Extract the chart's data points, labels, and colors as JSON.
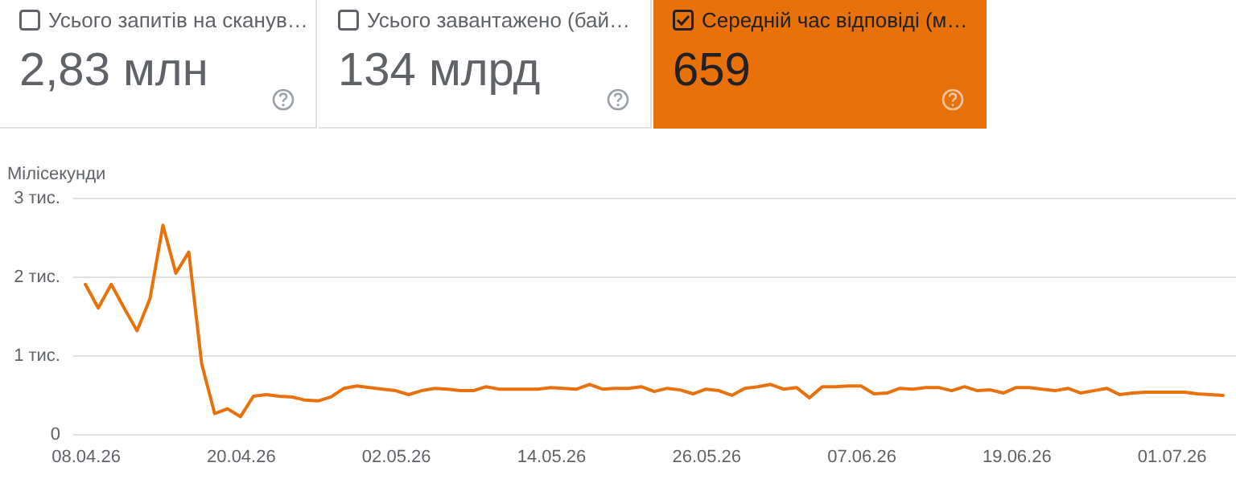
{
  "chart_data": [
    {
      "type": "other",
      "title": "Усього запитів на сканув…",
      "annotations": [
        "2,83 млн"
      ]
    },
    {
      "type": "other",
      "title": "Усього завантажено (бай…",
      "annotations": [
        "134 млрд"
      ]
    },
    {
      "type": "other",
      "title": "Середній час відповіді (м…",
      "annotations": [
        "659"
      ]
    },
    {
      "type": "line",
      "ylabel": "Мілісекунди",
      "x": [
        "--04-08",
        "--04-09",
        "--04-10",
        "--04-11",
        "--04-12",
        "--04-13",
        "--04-14",
        "--04-15",
        "--04-16",
        "--04-17",
        "--04-18",
        "--04-19",
        "--04-20",
        "--04-21",
        "--04-22",
        "--04-23",
        "--04-24",
        "--04-25",
        "--04-26",
        "--04-27",
        "--04-28",
        "--04-29",
        "--04-30",
        "--05-01",
        "--05-02",
        "--05-03",
        "--05-04",
        "--05-05",
        "--05-06",
        "--05-07",
        "--05-08",
        "--05-09",
        "--05-10",
        "--05-11",
        "--05-12",
        "--05-13",
        "--05-14",
        "--05-15",
        "--05-16",
        "--05-17",
        "--05-18",
        "--05-19",
        "--05-20",
        "--05-21",
        "--05-22",
        "--05-23",
        "--05-24",
        "--05-25",
        "--05-26",
        "--05-27",
        "--05-28",
        "--05-29",
        "--05-30",
        "--05-31",
        "--06-01",
        "--06-02",
        "--06-03",
        "--06-04",
        "--06-05",
        "--06-06",
        "--06-07",
        "--06-08",
        "--06-09",
        "--06-10",
        "--06-11",
        "--06-12",
        "--06-13",
        "--06-14",
        "--06-15",
        "--06-16",
        "--06-17",
        "--06-18",
        "--06-19",
        "--06-20",
        "--06-21",
        "--06-22",
        "--06-23",
        "--06-24",
        "--06-25",
        "--06-26",
        "--06-27",
        "--06-28",
        "--06-29",
        "--06-30",
        "--07-01",
        "--07-02",
        "--07-03",
        "--07-04",
        "--07-05"
      ],
      "series": [
        {
          "color": "#e8710a",
          "values": [
            1.9,
            1.6,
            1.9,
            1.6,
            1.31,
            1.72,
            2.65,
            2.04,
            2.31,
            0.89,
            0.26,
            0.32,
            0.22,
            0.48,
            0.5,
            0.48,
            0.47,
            0.43,
            0.42,
            0.47,
            0.58,
            0.61,
            0.59,
            0.57,
            0.55,
            0.5,
            0.55,
            0.58,
            0.57,
            0.55,
            0.55,
            0.6,
            0.57,
            0.57,
            0.57,
            0.57,
            0.59,
            0.58,
            0.57,
            0.63,
            0.57,
            0.58,
            0.58,
            0.6,
            0.54,
            0.58,
            0.56,
            0.51,
            0.57,
            0.55,
            0.49,
            0.58,
            0.6,
            0.63,
            0.57,
            0.59,
            0.46,
            0.6,
            0.6,
            0.61,
            0.61,
            0.51,
            0.52,
            0.58,
            0.57,
            0.59,
            0.59,
            0.55,
            0.6,
            0.55,
            0.56,
            0.52,
            0.59,
            0.59,
            0.57,
            0.55,
            0.58,
            0.52,
            0.55,
            0.58,
            0.5,
            0.52,
            0.53,
            0.53,
            0.53,
            0.53,
            0.51,
            0.5,
            0.49
          ]
        }
      ],
      "xlim": [
        "--04-07",
        "--07-06"
      ],
      "xticks": [
        {
          "value": "--04-08",
          "label": "08.04.26"
        },
        {
          "value": "--04-20",
          "label": "20.04.26"
        },
        {
          "value": "--05-02",
          "label": "02.05.26"
        },
        {
          "value": "--05-14",
          "label": "14.05.26"
        },
        {
          "value": "--05-26",
          "label": "26.05.26"
        },
        {
          "value": "--06-07",
          "label": "07.06.26"
        },
        {
          "value": "--06-19",
          "label": "19.06.26"
        },
        {
          "value": "--07-01",
          "label": "01.07.26"
        }
      ],
      "ylim": [
        0,
        3
      ],
      "yticks": [
        0,
        {
          "value": 1,
          "label": "1 тис."
        },
        {
          "value": 2,
          "label": "2 тис."
        },
        {
          "value": 3,
          "label": "3 тис."
        }
      ],
      "grid": "y"
    }
  ]
}
